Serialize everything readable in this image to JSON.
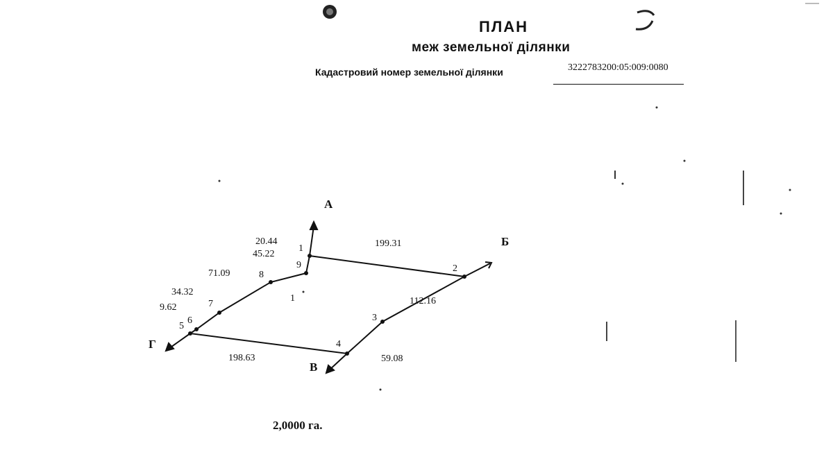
{
  "header": {
    "title": "ПЛАН",
    "subtitle": "меж земельної ділянки",
    "cadastral_label": "Кадастровий номер земельної ділянки",
    "cadastral_number": "3222783200:05:009:0080"
  },
  "plan": {
    "directions": {
      "a": "А",
      "b": "Б",
      "v": "В",
      "g": "Г"
    },
    "point_labels": {
      "p1": "1",
      "p2": "2",
      "p3": "3",
      "p4": "4",
      "p5": "5",
      "p6": "6",
      "p7": "7",
      "p8": "8",
      "p9": "9",
      "parcel": "1"
    },
    "distances": {
      "d_1_2": "199.31",
      "d_2_3": "112.16",
      "d_3_4": "59.08",
      "d_4_5": "198.63",
      "d_5_6": "9.62",
      "d_6_7": "34.32",
      "d_7_8": "71.09",
      "d_8_9": "45.22",
      "d_9_1": "20.44"
    }
  },
  "area": "2,0000 га.",
  "colors": {
    "ink": "#111111",
    "paper": "#ffffff"
  }
}
